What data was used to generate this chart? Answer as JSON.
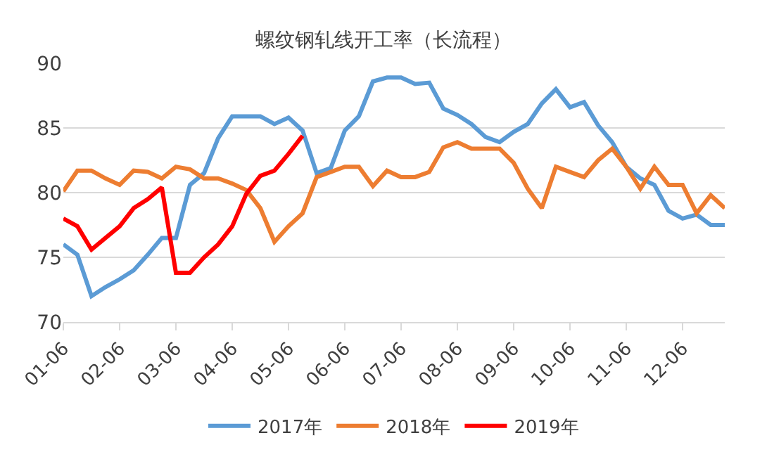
{
  "chart_data": {
    "type": "line",
    "title": "螺纹钢轧线开工率（长流程）",
    "categories": [
      "01-06",
      null,
      null,
      null,
      "02-06",
      null,
      null,
      null,
      "03-06",
      null,
      null,
      null,
      "04-06",
      null,
      null,
      null,
      "05-06",
      null,
      null,
      null,
      "06-06",
      null,
      null,
      null,
      "07-06",
      null,
      null,
      null,
      "08-06",
      null,
      null,
      null,
      "09-06",
      null,
      null,
      null,
      "10-06",
      null,
      null,
      null,
      "11-06",
      null,
      null,
      null,
      "12-06",
      null,
      null,
      null
    ],
    "ylim": [
      70,
      90
    ],
    "yticks": [
      70,
      75,
      80,
      85,
      90
    ],
    "grid": "y",
    "legend": "bottom",
    "marker": "none",
    "series": [
      {
        "name": "2017年",
        "color": "#5b9bd5",
        "values": [
          76.0,
          75.2,
          72.0,
          72.7,
          73.3,
          74.0,
          75.2,
          76.5,
          76.5,
          80.6,
          81.5,
          84.2,
          85.9,
          85.9,
          85.9,
          85.3,
          85.8,
          84.8,
          81.5,
          81.9,
          84.8,
          85.9,
          88.6,
          88.9,
          88.9,
          88.4,
          88.5,
          86.5,
          86.0,
          85.3,
          84.3,
          83.9,
          84.7,
          85.3,
          86.9,
          88.0,
          86.6,
          87.0,
          85.2,
          83.9,
          82.0,
          81.1,
          80.6,
          78.6,
          78.0,
          78.3,
          77.5,
          77.5
        ]
      },
      {
        "name": "2018年",
        "color": "#ed7d31",
        "values": [
          80.1,
          81.7,
          81.7,
          81.1,
          80.6,
          81.7,
          81.6,
          81.1,
          82.0,
          81.8,
          81.1,
          81.1,
          80.7,
          80.2,
          78.8,
          76.2,
          77.4,
          78.4,
          81.2,
          81.6,
          82.0,
          82.0,
          80.5,
          81.7,
          81.2,
          81.2,
          81.6,
          83.5,
          83.9,
          83.4,
          83.4,
          83.4,
          82.3,
          80.3,
          78.8,
          82.0,
          81.6,
          81.2,
          82.5,
          83.4,
          82.0,
          80.3,
          82.0,
          80.6,
          80.6,
          78.4,
          79.8,
          78.8
        ]
      },
      {
        "name": "2019年",
        "color": "#ff0000",
        "values": [
          78.0,
          77.4,
          75.6,
          76.5,
          77.4,
          78.8,
          79.5,
          80.4,
          73.8,
          73.8,
          75.0,
          76.0,
          77.4,
          79.9,
          81.3,
          81.7,
          83.0,
          84.4,
          null,
          null,
          null,
          null,
          null,
          null,
          null,
          null,
          null,
          null,
          null,
          null,
          null,
          null,
          null,
          null,
          null,
          null,
          null,
          null,
          null,
          null,
          null,
          null,
          null,
          null,
          null,
          null,
          null,
          null
        ]
      }
    ]
  }
}
